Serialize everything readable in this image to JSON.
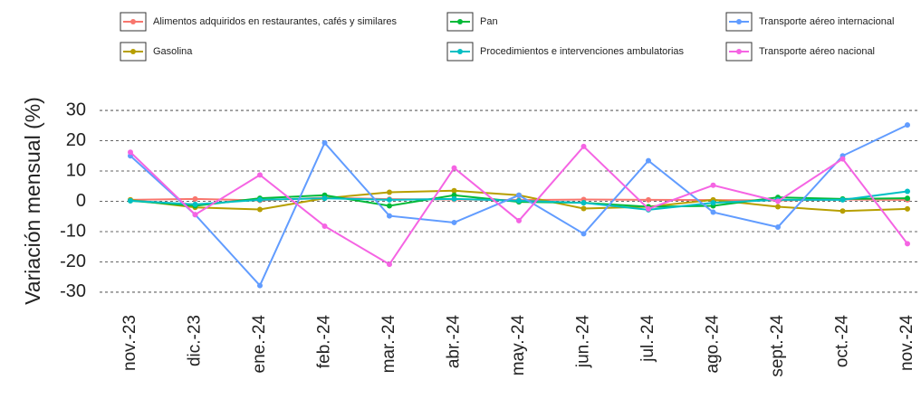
{
  "chart_data": {
    "type": "line",
    "y_label": "Variación mensual (%)",
    "categories": [
      "nov.-23",
      "dic.-23",
      "ene.-24",
      "feb.-24",
      "mar.-24",
      "abr.-24",
      "may.-24",
      "jun.-24",
      "jul.-24",
      "ago.-24",
      "sept.-24",
      "oct.-24",
      "nov.-24"
    ],
    "series": [
      {
        "name": "Alimentos adquiridos en restaurantes, cafés y similares",
        "color": "#F8766D",
        "values": [
          0.5,
          0.8,
          0.3,
          1.2,
          0.7,
          0.6,
          0.4,
          0.6,
          0.5,
          0.4,
          0.3,
          0.6,
          0.5
        ]
      },
      {
        "name": "Gasolina",
        "color": "#B79F00",
        "values": [
          0.5,
          -2.0,
          -2.7,
          1.0,
          3.0,
          3.5,
          2.0,
          -2.4,
          -1.8,
          0.5,
          -1.8,
          -3.2,
          -2.5
        ]
      },
      {
        "name": "Pan",
        "color": "#00BA38",
        "values": [
          0.2,
          -1.5,
          1.0,
          2.0,
          -1.5,
          2.0,
          -0.2,
          -0.5,
          -1.8,
          -1.5,
          1.3,
          0.8,
          1.0
        ]
      },
      {
        "name": "Procedimientos e intervenciones ambulatorias",
        "color": "#00BFC4",
        "values": [
          0.2,
          -1.0,
          0.5,
          1.0,
          0.5,
          0.8,
          0.2,
          -0.5,
          -2.8,
          -0.5,
          0.5,
          0.5,
          3.3
        ]
      },
      {
        "name": "Transporte aéreo internacional",
        "color": "#619CFF",
        "values": [
          15.0,
          -4.4,
          -27.8,
          19.3,
          -4.8,
          -7.0,
          2.0,
          -10.7,
          13.4,
          -3.6,
          -8.5,
          15.0,
          25.2
        ]
      },
      {
        "name": "Transporte aéreo nacional",
        "color": "#F564E3",
        "values": [
          16.2,
          -4.4,
          8.7,
          -8.2,
          -20.8,
          11.0,
          -6.4,
          18.1,
          -2.5,
          5.3,
          0.0,
          14.0,
          -14.0
        ]
      }
    ],
    "ylim": [
      -33,
      33
    ],
    "yticks": [
      -30,
      -20,
      -10,
      0,
      10,
      20,
      30
    ],
    "grid": true,
    "legend": "top"
  }
}
